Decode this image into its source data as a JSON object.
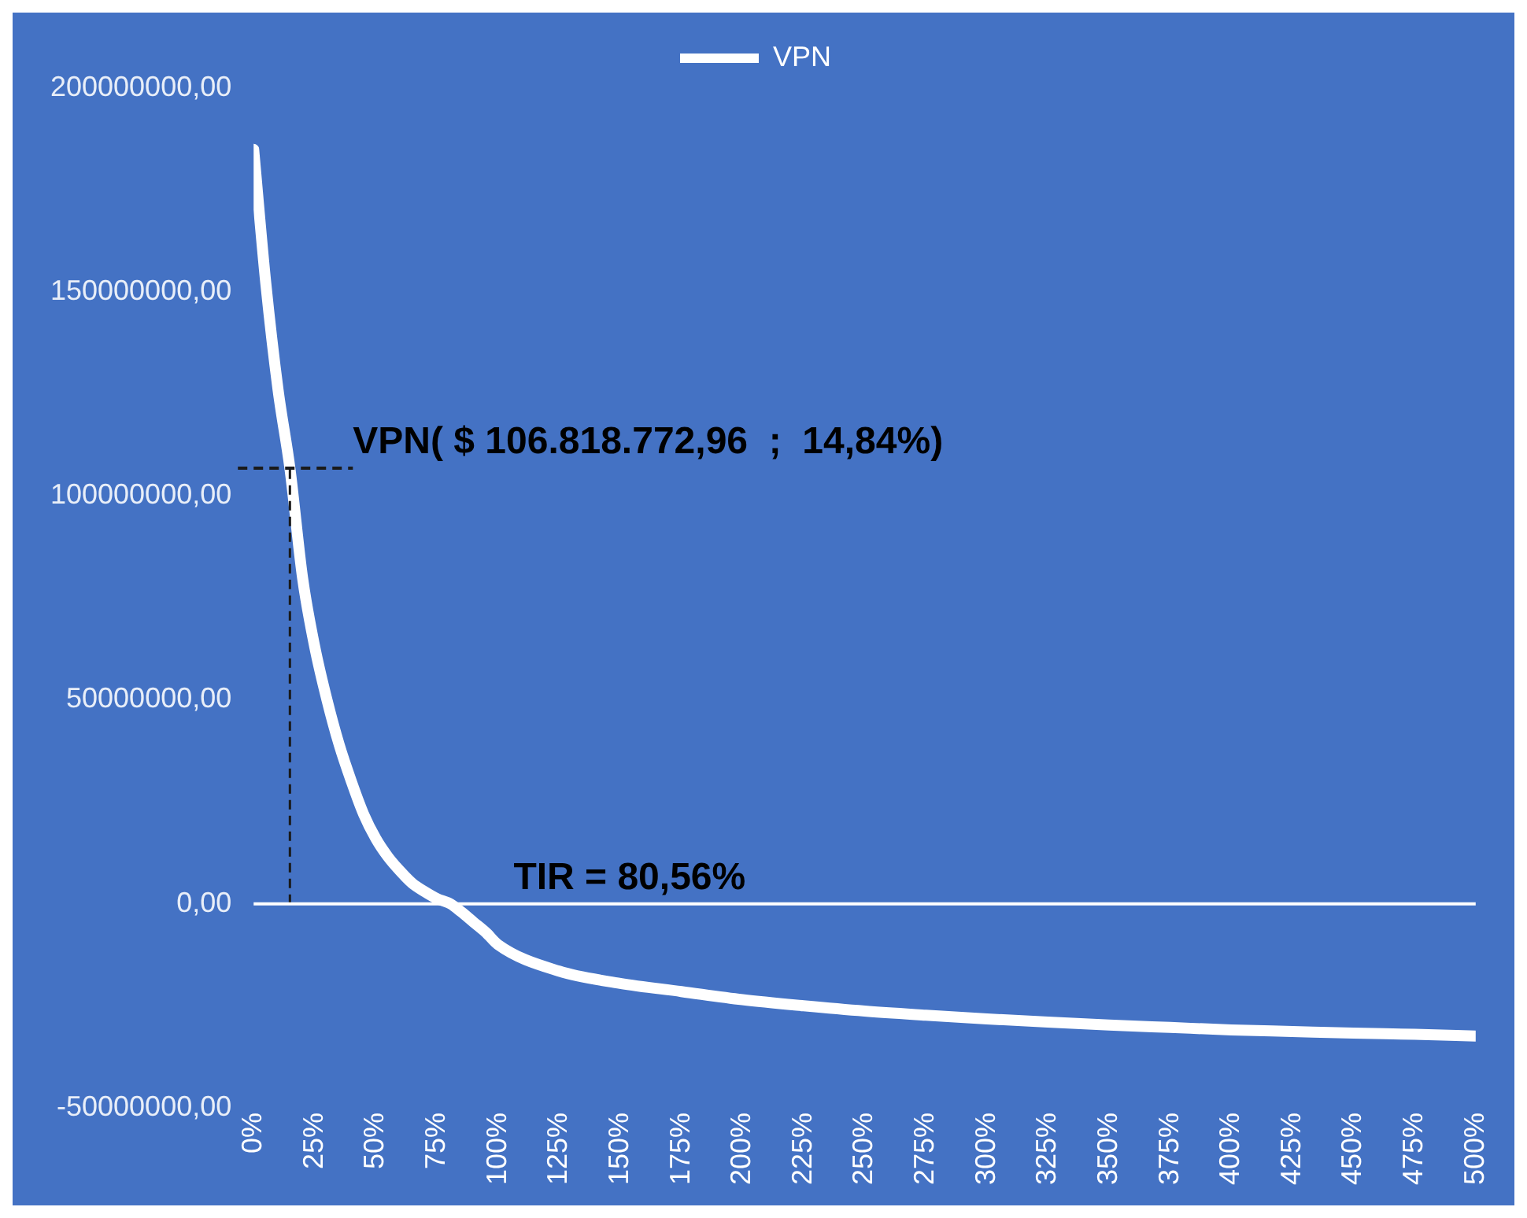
{
  "chart_data": {
    "type": "line",
    "legend": "top",
    "marker": "none",
    "line_style": "solid",
    "grid": false,
    "series": [
      {
        "name": "VPN",
        "color": "#ffffff",
        "x": [
          0,
          5,
          10,
          14.84,
          20,
          25,
          30,
          35,
          40,
          45,
          50,
          55,
          60,
          65,
          70,
          75,
          80.56,
          85,
          90,
          95,
          100,
          125,
          150,
          175,
          200,
          225,
          250,
          275,
          300,
          325,
          350,
          375,
          400,
          425,
          450,
          475,
          500
        ],
        "values": [
          185000000,
          152000000,
          126000000,
          106800000,
          80000000,
          63000000,
          50000000,
          39000000,
          30000000,
          22000000,
          16000000,
          11500000,
          8000000,
          5000000,
          3000000,
          1300000,
          0,
          -2000000,
          -4500000,
          -7000000,
          -10000000,
          -16500000,
          -19500000,
          -21500000,
          -23500000,
          -25000000,
          -26300000,
          -27300000,
          -28200000,
          -29000000,
          -29700000,
          -30300000,
          -30900000,
          -31300000,
          -31700000,
          -32000000,
          -32400000
        ]
      }
    ],
    "xlim": [
      0,
      500
    ],
    "xticks": [
      {
        "value": 0,
        "label": "0%"
      },
      {
        "value": 25,
        "label": "25%"
      },
      {
        "value": 50,
        "label": "50%"
      },
      {
        "value": 75,
        "label": "75%"
      },
      {
        "value": 100,
        "label": "100%"
      },
      {
        "value": 125,
        "label": "125%"
      },
      {
        "value": 150,
        "label": "150%"
      },
      {
        "value": 175,
        "label": "175%"
      },
      {
        "value": 200,
        "label": "200%"
      },
      {
        "value": 225,
        "label": "225%"
      },
      {
        "value": 250,
        "label": "250%"
      },
      {
        "value": 275,
        "label": "275%"
      },
      {
        "value": 300,
        "label": "300%"
      },
      {
        "value": 325,
        "label": "325%"
      },
      {
        "value": 350,
        "label": "350%"
      },
      {
        "value": 375,
        "label": "375%"
      },
      {
        "value": 400,
        "label": "400%"
      },
      {
        "value": 425,
        "label": "425%"
      },
      {
        "value": 450,
        "label": "450%"
      },
      {
        "value": 475,
        "label": "475%"
      },
      {
        "value": 500,
        "label": "500%"
      }
    ],
    "ylim": [
      -50000000,
      200000000
    ],
    "yticks": [
      {
        "value": -50000000,
        "label": "-50000000,00"
      },
      {
        "value": 0,
        "label": "0,00"
      },
      {
        "value": 50000000,
        "label": "50000000,00"
      },
      {
        "value": 100000000,
        "label": "100000000,00"
      },
      {
        "value": 150000000,
        "label": "150000000,00"
      },
      {
        "value": 200000000,
        "label": "200000000,00"
      }
    ],
    "ref_lines": [
      {
        "axis": "x",
        "value": 14.84,
        "color": "#1a1a1a",
        "line_style": "dashed"
      },
      {
        "axis": "y",
        "value": 106818772.96,
        "color": "#1a1a1a",
        "line_style": "dashed"
      },
      {
        "axis": "y",
        "value": 0,
        "color": "#ffffff",
        "line_style": "solid"
      }
    ],
    "annotations": [
      {
        "text": "VPN( $ 106.818.772,96  ;  14,84%)",
        "x": 14.84,
        "y": 106818772.96
      },
      {
        "text": "TIR = 80,56%",
        "x": 80.56,
        "y": 0
      }
    ]
  }
}
